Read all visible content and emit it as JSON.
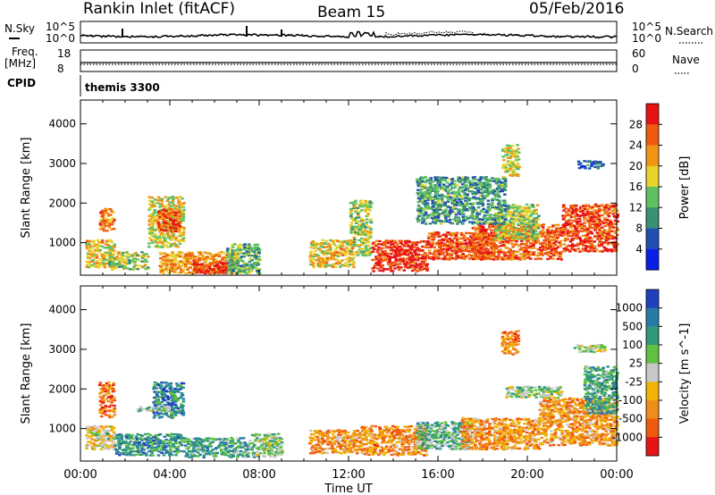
{
  "header": {
    "station": "Rankin Inlet (fitACF)",
    "beam": "Beam 15",
    "date": "05/Feb/2016"
  },
  "top_panels": {
    "nsky_label": "N.Sky",
    "nsky_ticks": [
      "10^5",
      "10^0"
    ],
    "nsearch_label": "N.Search",
    "nsearch_ticks": [
      "10^5",
      "10^0"
    ],
    "freq_label": "Freq.",
    "freq_unit": "[MHz]",
    "freq_ticks": [
      "18",
      "8"
    ],
    "nave_label": "Nave",
    "nave_ticks": [
      "60",
      "0"
    ],
    "cpid_label": "CPID",
    "cpid_value": "themis 3300"
  },
  "chart_data": [
    {
      "type": "heatmap",
      "parameter": "Power",
      "ylabel": "Slant Range [km]",
      "xlabel": "Time UT",
      "x_ticks": [
        "00:00",
        "04:00",
        "08:00",
        "12:00",
        "16:00",
        "20:00",
        "00:00"
      ],
      "x_range_hours": [
        0,
        24
      ],
      "y_ticks": [
        "1000",
        "2000",
        "3000",
        "4000"
      ],
      "y_range_km": [
        180,
        4600
      ],
      "colorbar_label": "Power [dB]",
      "colorbar_ticks": [
        "4",
        "8",
        "12",
        "16",
        "20",
        "24",
        "28"
      ],
      "colorbar_range": [
        0,
        32
      ],
      "colors": [
        "#0a1ee6",
        "#2050b4",
        "#3a9070",
        "#60c060",
        "#e6d228",
        "#f09614",
        "#f05a0f",
        "#e61414"
      ],
      "regions": [
        {
          "t0": 0.2,
          "t1": 1.5,
          "r0": 400,
          "r1": 1100,
          "level": 0.6
        },
        {
          "t0": 0.8,
          "t1": 1.5,
          "r0": 1300,
          "r1": 1900,
          "level": 0.75
        },
        {
          "t0": 1.2,
          "t1": 3.0,
          "r0": 350,
          "r1": 800,
          "level": 0.5
        },
        {
          "t0": 3.0,
          "t1": 4.6,
          "r0": 900,
          "r1": 2200,
          "level": 0.55
        },
        {
          "t0": 3.4,
          "t1": 4.4,
          "r0": 1300,
          "r1": 1900,
          "level": 0.8
        },
        {
          "t0": 3.5,
          "t1": 7.0,
          "r0": 250,
          "r1": 800,
          "level": 0.7
        },
        {
          "t0": 5.0,
          "t1": 6.5,
          "r0": 250,
          "r1": 550,
          "level": 0.95
        },
        {
          "t0": 6.5,
          "t1": 8.0,
          "r0": 250,
          "r1": 1000,
          "level": 0.4
        },
        {
          "t0": 10.2,
          "t1": 12.2,
          "r0": 400,
          "r1": 1100,
          "level": 0.6
        },
        {
          "t0": 12.0,
          "t1": 13.0,
          "r0": 700,
          "r1": 2100,
          "level": 0.5
        },
        {
          "t0": 13.0,
          "t1": 15.5,
          "r0": 300,
          "r1": 1100,
          "level": 0.9
        },
        {
          "t0": 15.5,
          "t1": 18.5,
          "r0": 600,
          "r1": 1300,
          "level": 0.85
        },
        {
          "t0": 17.5,
          "t1": 21.5,
          "r0": 600,
          "r1": 1500,
          "level": 0.8
        },
        {
          "t0": 18.5,
          "t1": 20.5,
          "r0": 1100,
          "r1": 2000,
          "level": 0.5
        },
        {
          "t0": 21.5,
          "t1": 24.0,
          "r0": 800,
          "r1": 2000,
          "level": 0.85
        },
        {
          "t0": 22.2,
          "t1": 23.4,
          "r0": 2900,
          "r1": 3100,
          "level": 0.25
        },
        {
          "t0": 18.8,
          "t1": 19.6,
          "r0": 2700,
          "r1": 3500,
          "level": 0.55
        },
        {
          "t0": 15.0,
          "t1": 19.0,
          "r0": 1500,
          "r1": 2700,
          "level": 0.35
        }
      ]
    },
    {
      "type": "heatmap",
      "parameter": "Velocity",
      "ylabel": "Slant Range [km]",
      "xlabel": "Time UT",
      "x_ticks": [
        "00:00",
        "04:00",
        "08:00",
        "12:00",
        "16:00",
        "20:00",
        "00:00"
      ],
      "x_range_hours": [
        0,
        24
      ],
      "y_ticks": [
        "1000",
        "2000",
        "3000",
        "4000"
      ],
      "y_range_km": [
        180,
        4600
      ],
      "colorbar_label": "Velocity [m s^-1]",
      "colorbar_ticks": [
        "1000",
        "500",
        "100",
        "25",
        "-25",
        "-100",
        "-500",
        "-1000"
      ],
      "colors": [
        "#2040c0",
        "#2a7aa8",
        "#2e9a7a",
        "#60c040",
        "#c8c8c8",
        "#f0b400",
        "#f08c1a",
        "#f05a0f",
        "#e61414"
      ],
      "regions": [
        {
          "t0": 0.2,
          "t1": 1.5,
          "r0": 500,
          "r1": 1100,
          "level": 0.55
        },
        {
          "t0": 0.6,
          "t1": 1.2,
          "r0": 750,
          "r1": 950,
          "level": 0.45
        },
        {
          "t0": 0.8,
          "t1": 1.5,
          "r0": 1300,
          "r1": 2200,
          "level": 0.8
        },
        {
          "t0": 1.5,
          "t1": 4.5,
          "r0": 350,
          "r1": 900,
          "level": 0.25
        },
        {
          "t0": 3.2,
          "t1": 4.6,
          "r0": 1300,
          "r1": 2200,
          "level": 0.2
        },
        {
          "t0": 2.5,
          "t1": 4.0,
          "r0": 1450,
          "r1": 1600,
          "level": 0.45
        },
        {
          "t0": 4.5,
          "t1": 7.5,
          "r0": 300,
          "r1": 800,
          "level": 0.3
        },
        {
          "t0": 7.5,
          "t1": 9.0,
          "r0": 300,
          "r1": 900,
          "level": 0.4
        },
        {
          "t0": 10.2,
          "t1": 12.5,
          "r0": 400,
          "r1": 1000,
          "level": 0.7
        },
        {
          "t0": 12.5,
          "t1": 15.5,
          "r0": 350,
          "r1": 1100,
          "level": 0.72
        },
        {
          "t0": 15.0,
          "t1": 17.5,
          "r0": 500,
          "r1": 1200,
          "level": 0.35
        },
        {
          "t0": 17.0,
          "t1": 20.5,
          "r0": 500,
          "r1": 1300,
          "level": 0.7
        },
        {
          "t0": 19.0,
          "t1": 21.5,
          "r0": 1800,
          "r1": 2100,
          "level": 0.45
        },
        {
          "t0": 20.5,
          "t1": 24.0,
          "r0": 600,
          "r1": 1800,
          "level": 0.7
        },
        {
          "t0": 22.5,
          "t1": 24.0,
          "r0": 1400,
          "r1": 2600,
          "level": 0.3
        },
        {
          "t0": 22.0,
          "t1": 23.5,
          "r0": 2950,
          "r1": 3150,
          "level": 0.45
        },
        {
          "t0": 18.8,
          "t1": 19.6,
          "r0": 2900,
          "r1": 3500,
          "level": 0.75
        }
      ]
    }
  ]
}
